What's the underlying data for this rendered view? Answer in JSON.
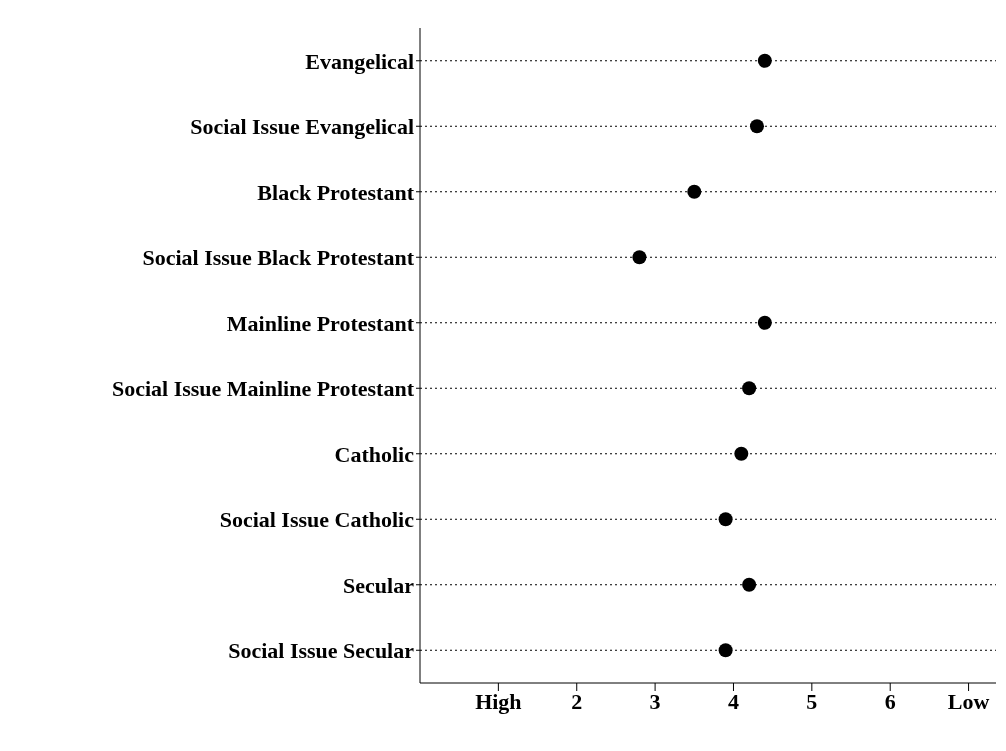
{
  "chart_data": {
    "type": "scatter",
    "orientation": "horizontal",
    "categories": [
      "Evangelical",
      "Social Issue Evangelical",
      "Black Protestant",
      "Social Issue Black Protestant",
      "Mainline Protestant",
      "Social Issue Mainline Protestant",
      "Catholic",
      "Social Issue Catholic",
      "Secular",
      "Social Issue Secular"
    ],
    "values": [
      4.4,
      4.3,
      3.5,
      2.8,
      4.4,
      4.2,
      4.1,
      3.9,
      4.2,
      3.9
    ],
    "color": "#000000",
    "marker": "circle",
    "grid": "y",
    "line_style": "dotted",
    "xlim": [
      0,
      7.35
    ],
    "xticks": [
      {
        "value": 1,
        "label": "High"
      },
      2,
      3,
      4,
      5,
      6,
      {
        "value": 7,
        "label": "Low"
      }
    ]
  }
}
